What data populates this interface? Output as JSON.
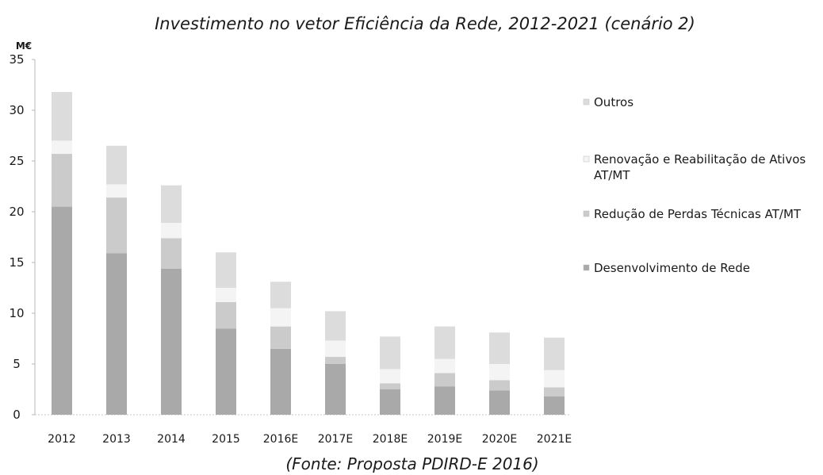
{
  "chart_data": {
    "type": "bar",
    "stacked": true,
    "title": "Investimento no vetor Eficiência da Rede, 2012-2021 (cenário 2)",
    "source": "(Fonte: Proposta PDIRD-E 2016)",
    "unit": "M€",
    "xlabel": "",
    "ylabel": "",
    "ylim": [
      0,
      35
    ],
    "yticks": [
      "0",
      "5",
      "10",
      "15",
      "20",
      "25",
      "30",
      "35"
    ],
    "categories": [
      "2012",
      "2013",
      "2014",
      "2015",
      "2016E",
      "2017E",
      "2018E",
      "2019E",
      "2020E",
      "2021E"
    ],
    "series": [
      {
        "name": "Desenvolvimento de Rede",
        "color": "#a9a9a9",
        "values": [
          20.5,
          15.9,
          14.4,
          8.5,
          6.5,
          5.0,
          2.5,
          2.8,
          2.4,
          1.8
        ]
      },
      {
        "name": "Redução de Perdas Técnicas AT/MT",
        "color": "#cbcbcb",
        "values": [
          5.2,
          5.5,
          3.0,
          2.6,
          2.2,
          0.7,
          0.6,
          1.3,
          1.0,
          0.9
        ]
      },
      {
        "name": "Renovação e Reabilitação de Ativos AT/MT",
        "color": "#f4f4f4",
        "values": [
          1.3,
          1.3,
          1.5,
          1.4,
          1.8,
          1.6,
          1.4,
          1.4,
          1.6,
          1.7
        ]
      },
      {
        "name": "Outros",
        "color": "#dcdcdc",
        "values": [
          4.8,
          3.8,
          3.7,
          3.5,
          2.6,
          2.9,
          3.2,
          3.2,
          3.1,
          3.2
        ]
      }
    ],
    "legend": {
      "placement": "right",
      "order": [
        "Outros",
        "Renovação e Reabilitação de Ativos AT/MT",
        "Redução de Perdas Técnicas AT/MT",
        "Desenvolvimento de Rede"
      ],
      "lines": [
        [
          "Outros"
        ],
        [
          "Renovação e Reabilitação de Ativos",
          "AT/MT"
        ],
        [
          "Redução de Perdas Técnicas AT/MT"
        ],
        [
          "Desenvolvimento de Rede"
        ]
      ]
    },
    "grid": false
  }
}
